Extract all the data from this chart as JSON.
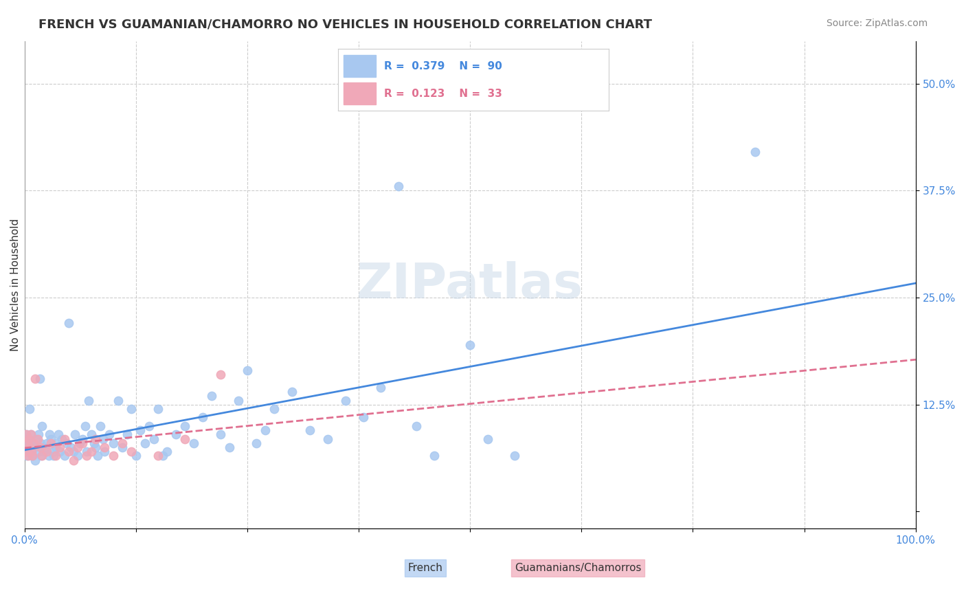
{
  "title": "FRENCH VS GUAMANIAN/CHAMORRO NO VEHICLES IN HOUSEHOLD CORRELATION CHART",
  "source": "Source: ZipAtlas.com",
  "xlabel": "",
  "ylabel": "No Vehicles in Household",
  "xlim": [
    0.0,
    1.0
  ],
  "ylim": [
    -0.02,
    0.55
  ],
  "x_ticks": [
    0.0,
    0.125,
    0.25,
    0.375,
    0.5,
    0.625,
    0.75,
    0.875,
    1.0
  ],
  "x_tick_labels": [
    "0.0%",
    "",
    "",
    "",
    "",
    "",
    "",
    "",
    "100.0%"
  ],
  "y_ticks": [
    0.0,
    0.125,
    0.25,
    0.375,
    0.5
  ],
  "y_tick_labels": [
    "",
    "12.5%",
    "25.0%",
    "37.5%",
    "50.0%"
  ],
  "french_R": 0.379,
  "french_N": 90,
  "guam_R": 0.123,
  "guam_N": 33,
  "french_color": "#a8c8f0",
  "guam_color": "#f0a8b8",
  "french_line_color": "#4488dd",
  "guam_line_color": "#e07090",
  "trend_label_color": "#4488dd",
  "watermark": "ZIPatlas",
  "background_color": "#ffffff",
  "grid_color": "#cccccc",
  "french_scatter": [
    [
      0.001,
      0.085
    ],
    [
      0.002,
      0.09
    ],
    [
      0.003,
      0.065
    ],
    [
      0.004,
      0.075
    ],
    [
      0.005,
      0.08
    ],
    [
      0.006,
      0.12
    ],
    [
      0.007,
      0.09
    ],
    [
      0.008,
      0.07
    ],
    [
      0.009,
      0.065
    ],
    [
      0.01,
      0.08
    ],
    [
      0.011,
      0.075
    ],
    [
      0.012,
      0.06
    ],
    [
      0.013,
      0.085
    ],
    [
      0.015,
      0.07
    ],
    [
      0.016,
      0.09
    ],
    [
      0.017,
      0.155
    ],
    [
      0.018,
      0.08
    ],
    [
      0.019,
      0.065
    ],
    [
      0.02,
      0.1
    ],
    [
      0.022,
      0.07
    ],
    [
      0.023,
      0.075
    ],
    [
      0.025,
      0.08
    ],
    [
      0.027,
      0.065
    ],
    [
      0.028,
      0.09
    ],
    [
      0.03,
      0.085
    ],
    [
      0.032,
      0.07
    ],
    [
      0.033,
      0.065
    ],
    [
      0.035,
      0.075
    ],
    [
      0.036,
      0.08
    ],
    [
      0.038,
      0.09
    ],
    [
      0.04,
      0.07
    ],
    [
      0.042,
      0.085
    ],
    [
      0.045,
      0.065
    ],
    [
      0.047,
      0.08
    ],
    [
      0.05,
      0.22
    ],
    [
      0.052,
      0.075
    ],
    [
      0.055,
      0.07
    ],
    [
      0.057,
      0.09
    ],
    [
      0.06,
      0.065
    ],
    [
      0.062,
      0.08
    ],
    [
      0.065,
      0.085
    ],
    [
      0.068,
      0.1
    ],
    [
      0.07,
      0.07
    ],
    [
      0.072,
      0.13
    ],
    [
      0.075,
      0.09
    ],
    [
      0.078,
      0.08
    ],
    [
      0.08,
      0.075
    ],
    [
      0.082,
      0.065
    ],
    [
      0.085,
      0.1
    ],
    [
      0.088,
      0.085
    ],
    [
      0.09,
      0.07
    ],
    [
      0.095,
      0.09
    ],
    [
      0.1,
      0.08
    ],
    [
      0.105,
      0.13
    ],
    [
      0.11,
      0.075
    ],
    [
      0.115,
      0.09
    ],
    [
      0.12,
      0.12
    ],
    [
      0.125,
      0.065
    ],
    [
      0.13,
      0.095
    ],
    [
      0.135,
      0.08
    ],
    [
      0.14,
      0.1
    ],
    [
      0.145,
      0.085
    ],
    [
      0.15,
      0.12
    ],
    [
      0.155,
      0.065
    ],
    [
      0.16,
      0.07
    ],
    [
      0.17,
      0.09
    ],
    [
      0.18,
      0.1
    ],
    [
      0.19,
      0.08
    ],
    [
      0.2,
      0.11
    ],
    [
      0.21,
      0.135
    ],
    [
      0.22,
      0.09
    ],
    [
      0.23,
      0.075
    ],
    [
      0.24,
      0.13
    ],
    [
      0.25,
      0.165
    ],
    [
      0.26,
      0.08
    ],
    [
      0.27,
      0.095
    ],
    [
      0.28,
      0.12
    ],
    [
      0.3,
      0.14
    ],
    [
      0.32,
      0.095
    ],
    [
      0.34,
      0.085
    ],
    [
      0.36,
      0.13
    ],
    [
      0.38,
      0.11
    ],
    [
      0.4,
      0.145
    ],
    [
      0.42,
      0.38
    ],
    [
      0.44,
      0.1
    ],
    [
      0.46,
      0.065
    ],
    [
      0.5,
      0.195
    ],
    [
      0.52,
      0.085
    ],
    [
      0.55,
      0.065
    ],
    [
      0.82,
      0.42
    ]
  ],
  "guam_scatter": [
    [
      0.001,
      0.07
    ],
    [
      0.002,
      0.09
    ],
    [
      0.003,
      0.08
    ],
    [
      0.004,
      0.065
    ],
    [
      0.005,
      0.085
    ],
    [
      0.006,
      0.075
    ],
    [
      0.007,
      0.09
    ],
    [
      0.008,
      0.07
    ],
    [
      0.009,
      0.065
    ],
    [
      0.01,
      0.08
    ],
    [
      0.012,
      0.155
    ],
    [
      0.015,
      0.085
    ],
    [
      0.018,
      0.075
    ],
    [
      0.02,
      0.065
    ],
    [
      0.025,
      0.07
    ],
    [
      0.03,
      0.08
    ],
    [
      0.035,
      0.065
    ],
    [
      0.04,
      0.075
    ],
    [
      0.045,
      0.085
    ],
    [
      0.05,
      0.07
    ],
    [
      0.055,
      0.06
    ],
    [
      0.06,
      0.075
    ],
    [
      0.065,
      0.08
    ],
    [
      0.07,
      0.065
    ],
    [
      0.075,
      0.07
    ],
    [
      0.08,
      0.085
    ],
    [
      0.09,
      0.075
    ],
    [
      0.1,
      0.065
    ],
    [
      0.11,
      0.08
    ],
    [
      0.12,
      0.07
    ],
    [
      0.15,
      0.065
    ],
    [
      0.18,
      0.085
    ],
    [
      0.22,
      0.16
    ]
  ],
  "title_fontsize": 13,
  "axis_label_fontsize": 11,
  "tick_fontsize": 11,
  "legend_fontsize": 12,
  "source_fontsize": 10
}
